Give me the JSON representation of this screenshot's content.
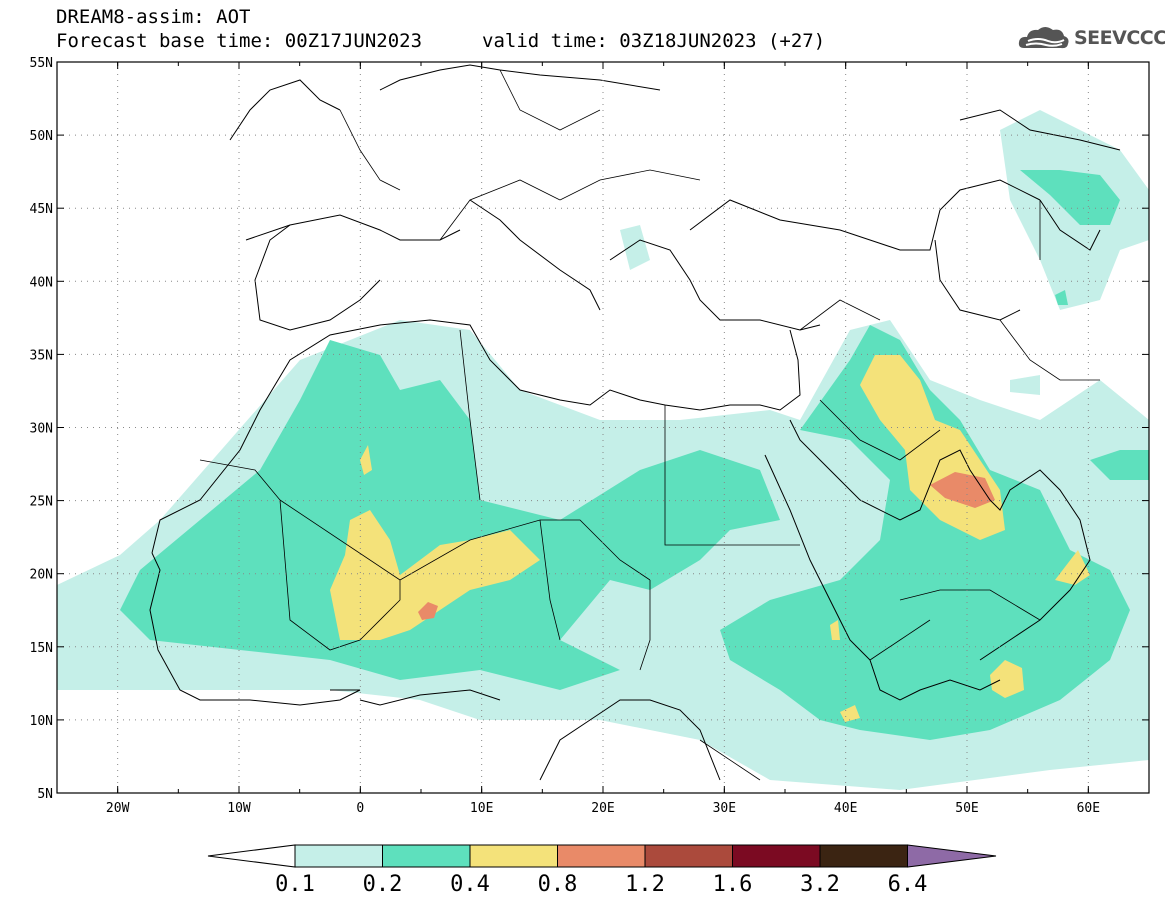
{
  "header": {
    "title_line1": "DREAM8-assim: AOT",
    "title_line2_left": "Forecast base time: 00Z17JUN2023",
    "title_line2_right": "valid time: 03Z18JUN2023 (+27)"
  },
  "logo": {
    "text": "SEEVCCC",
    "icon": "cloud-logo-icon"
  },
  "map": {
    "lon_ticks": [
      "20W",
      "10W",
      "0",
      "10E",
      "20E",
      "30E",
      "40E",
      "50E",
      "60E"
    ],
    "lat_ticks": [
      "55N",
      "50N",
      "45N",
      "40N",
      "35N",
      "30N",
      "25N",
      "20N",
      "15N",
      "10N",
      "5N"
    ],
    "lon_range": [
      -25,
      65
    ],
    "lat_range": [
      5,
      55
    ],
    "grid": "dotted"
  },
  "colorbar": {
    "labels": [
      "0.1",
      "0.2",
      "0.4",
      "0.8",
      "1.2",
      "1.6",
      "3.2",
      "6.4"
    ],
    "colors": [
      "#ffffff",
      "#c5efe8",
      "#5ee0bd",
      "#f4e27a",
      "#e98a68",
      "#ab4a3c",
      "#7b0a22",
      "#3b2412",
      "#8e6aa6"
    ]
  },
  "aot_colors": {
    "lvl1": "#c5efe8",
    "lvl2": "#5ee0bd",
    "lvl3": "#f4e27a",
    "lvl4": "#e98a68"
  }
}
